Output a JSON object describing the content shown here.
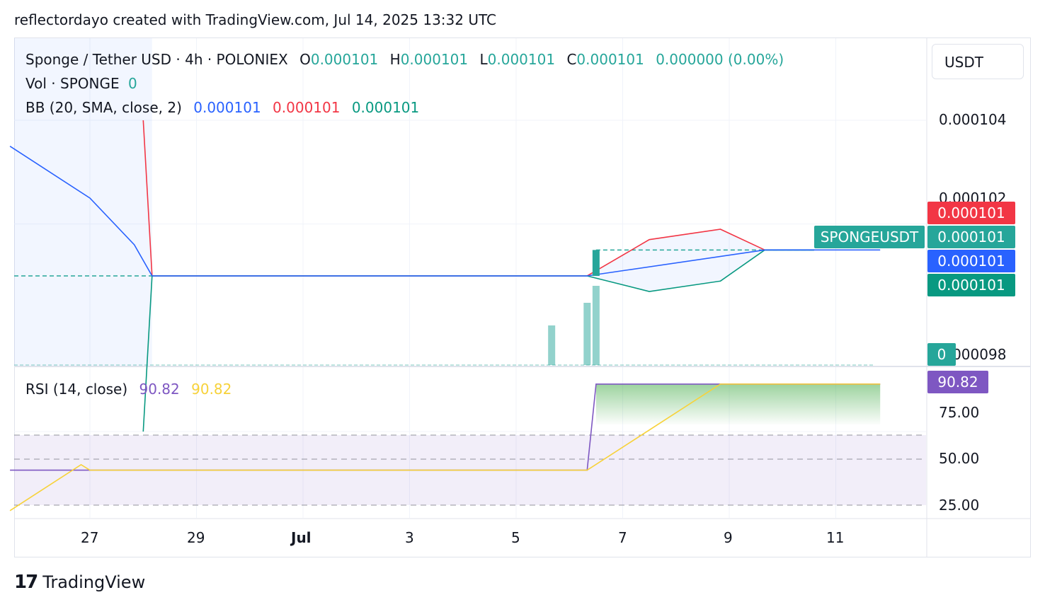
{
  "header": {
    "text": "reflectordayo created with TradingView.com, Jul 14, 2025 13:32 UTC"
  },
  "legend": {
    "symbol": "Sponge / Tether USD · 4h · POLONIEX",
    "o_label": "O",
    "o": "0.000101",
    "h_label": "H",
    "h": "0.000101",
    "l_label": "L",
    "l": "0.000101",
    "c_label": "C",
    "c": "0.000101",
    "change": "0.000000 (0.00%)",
    "vol_label": "Vol · SPONGE",
    "vol": "0",
    "bb_label": "BB (20, SMA, close, 2)",
    "bb_basis": "0.000101",
    "bb_upper": "0.000101",
    "bb_lower": "0.000101",
    "rsi_label": "RSI (14, close)",
    "rsi_value": "90.82",
    "rsi_ma": "90.82"
  },
  "price_axis": {
    "unit": "USDT",
    "ticks": [
      "0.000104",
      "0.000102",
      "0.000098"
    ],
    "badges": {
      "upper": "0.000101",
      "last": "0.000101",
      "basis": "0.000101",
      "lower": "0.000101",
      "symbol_tag": "SPONGEUSDT",
      "volume": "0"
    }
  },
  "rsi_axis": {
    "ticks": [
      "75.00",
      "50.00",
      "25.00"
    ],
    "badge": "90.82"
  },
  "time_axis": {
    "ticks": [
      "27",
      "29",
      "Jul",
      "3",
      "5",
      "7",
      "9",
      "11"
    ]
  },
  "footer": {
    "logo": "17",
    "brand": "TradingView"
  },
  "colors": {
    "bb_upper": "#f23645",
    "bb_basis": "#2962ff",
    "bb_lower": "#089981",
    "candle": "#26a69a",
    "rsi": "#7e57c2",
    "rsi_ma": "#f7d23a"
  },
  "chart_data": [
    {
      "type": "line",
      "x": [
        "27",
        "29",
        "Jul",
        "3",
        "5",
        "7",
        "9",
        "11"
      ],
      "bollinger_basis": [
        {
          "date": "Jun 25 12:00",
          "value": 0.0001035
        },
        {
          "date": "Jun 27 00:00",
          "value": 0.0001025
        },
        {
          "date": "Jun 27 20:00",
          "value": 0.0001016
        },
        {
          "date": "Jun 28 04:00",
          "value": 0.000101
        },
        {
          "date": "Jul 06 08:00",
          "value": 0.000101
        },
        {
          "date": "Jul 09 16:00",
          "value": 0.0001015
        },
        {
          "date": "Jul 11 20:00",
          "value": 0.0001015
        }
      ],
      "bollinger_upper": [
        {
          "date": "Jun 28 00:00",
          "value": 0.000104
        },
        {
          "date": "Jun 28 04:00",
          "value": 0.000101
        },
        {
          "date": "Jul 06 08:00",
          "value": 0.000101
        },
        {
          "date": "Jul 07 12:00",
          "value": 0.0001017
        },
        {
          "date": "Jul 08 20:00",
          "value": 0.0001019
        },
        {
          "date": "Jul 09 16:00",
          "value": 0.0001015
        }
      ],
      "bollinger_lower": [
        {
          "date": "Jun 28 00:00",
          "value": 9.8e-05
        },
        {
          "date": "Jun 28 04:00",
          "value": 0.000101
        },
        {
          "date": "Jul 06 08:00",
          "value": 0.000101
        },
        {
          "date": "Jul 07 12:00",
          "value": 0.0001007
        },
        {
          "date": "Jul 08 20:00",
          "value": 0.0001009
        },
        {
          "date": "Jul 09 16:00",
          "value": 0.0001015
        }
      ],
      "candle": {
        "date": "Jul 06 12:00",
        "open": 0.000101,
        "close": 0.0001015
      },
      "volume_bars": [
        {
          "date": "Jul 05 16:00",
          "value": 0.35
        },
        {
          "date": "Jul 06 08:00",
          "value": 0.55
        },
        {
          "date": "Jul 06 12:00",
          "value": 0.7
        }
      ],
      "last_price": 0.000101,
      "ylim": [
        9.78e-05,
        0.0001053
      ]
    },
    {
      "type": "line",
      "rsi": [
        {
          "date": "Jun 25 12:00",
          "value": 44
        },
        {
          "date": "Jul 06 08:00",
          "value": 44
        },
        {
          "date": "Jul 06 12:00",
          "value": 90.82
        },
        {
          "date": "Jul 11 20:00",
          "value": 90.82
        }
      ],
      "rsi_ma": [
        {
          "date": "Jun 25 12:00",
          "value": 22
        },
        {
          "date": "Jun 26 20:00",
          "value": 47
        },
        {
          "date": "Jun 27 00:00",
          "value": 44
        },
        {
          "date": "Jul 06 08:00",
          "value": 44
        },
        {
          "date": "Jul 08 20:00",
          "value": 90.82
        },
        {
          "date": "Jul 11 20:00",
          "value": 90.82
        }
      ],
      "bands": [
        30,
        50,
        70
      ],
      "ylim": [
        10,
        100
      ]
    }
  ]
}
